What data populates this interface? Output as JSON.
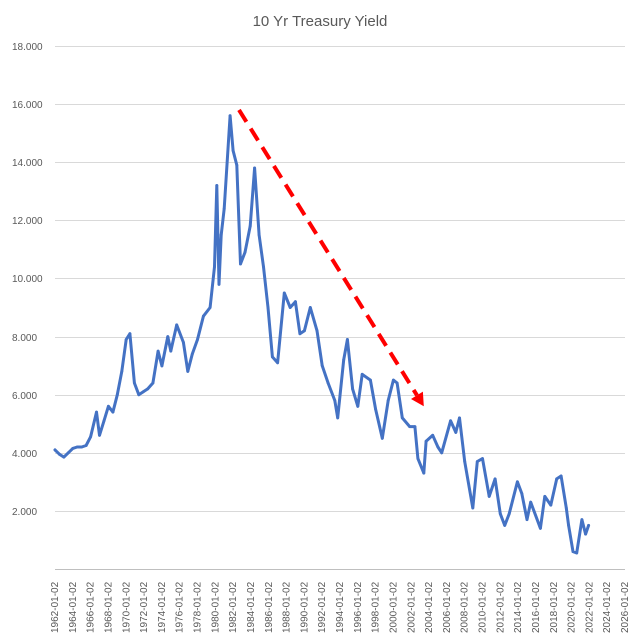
{
  "chart_data": {
    "type": "line",
    "title": "10 Yr Treasury Yield",
    "xlabel": "",
    "ylabel": "",
    "ylim": [
      0,
      18
    ],
    "xlim": [
      "1962-01-02",
      "2026-01-02"
    ],
    "y_ticks": [
      "",
      "2.000",
      "4.000",
      "6.000",
      "8.000",
      "10.000",
      "12.000",
      "14.000",
      "16.000",
      "18.000"
    ],
    "x_ticks": [
      "1962-01-02",
      "1964-01-02",
      "1966-01-02",
      "1968-01-02",
      "1970-01-02",
      "1972-01-02",
      "1974-01-02",
      "1976-01-02",
      "1978-01-02",
      "1980-01-02",
      "1982-01-02",
      "1984-01-02",
      "1986-01-02",
      "1988-01-02",
      "1990-01-02",
      "1992-01-02",
      "1994-01-02",
      "1996-01-02",
      "1998-01-02",
      "2000-01-02",
      "2002-01-02",
      "2004-01-02",
      "2006-01-02",
      "2008-01-02",
      "2010-01-02",
      "2012-01-02",
      "2014-01-02",
      "2016-01-02",
      "2018-01-02",
      "2020-01-02",
      "2022-01-02",
      "2024-01-02",
      "2026-01-02"
    ],
    "grid": true,
    "colors": {
      "series": "#4472c4",
      "trend": "#ff0000",
      "grid": "#d9d9d9",
      "text": "#595959"
    },
    "series": [
      {
        "x": [
          "1962-01",
          "1962-07",
          "1963-01",
          "1963-07",
          "1964-01",
          "1964-07",
          "1965-01",
          "1965-07",
          "1966-01",
          "1966-09",
          "1967-01",
          "1967-07",
          "1968-01",
          "1968-07",
          "1969-01",
          "1969-07",
          "1970-01",
          "1970-06",
          "1970-12",
          "1971-06",
          "1971-12",
          "1972-06",
          "1973-01",
          "1973-08",
          "1974-01",
          "1974-09",
          "1975-01",
          "1975-09",
          "1976-06",
          "1976-12",
          "1977-06",
          "1978-01",
          "1978-09",
          "1979-06",
          "1979-12",
          "1980-03",
          "1980-06",
          "1980-09",
          "1981-01",
          "1981-09",
          "1982-01",
          "1982-06",
          "1982-11",
          "1983-05",
          "1983-12",
          "1984-06",
          "1984-12",
          "1985-06",
          "1985-12",
          "1986-06",
          "1987-01",
          "1987-10",
          "1988-06",
          "1989-01",
          "1989-07",
          "1990-01",
          "1990-09",
          "1991-06",
          "1992-01",
          "1992-09",
          "1993-06",
          "1993-10",
          "1994-06",
          "1994-11",
          "1995-06",
          "1996-01",
          "1996-07",
          "1997-06",
          "1998-01",
          "1998-10",
          "1999-06",
          "2000-01",
          "2000-06",
          "2001-01",
          "2001-11",
          "2002-06",
          "2002-10",
          "2003-06",
          "2003-09",
          "2004-06",
          "2005-01",
          "2005-06",
          "2006-06",
          "2007-01",
          "2007-06",
          "2008-01",
          "2008-12",
          "2009-06",
          "2010-01",
          "2010-10",
          "2011-06",
          "2012-01",
          "2012-07",
          "2013-01",
          "2013-12",
          "2014-06",
          "2015-01",
          "2015-06",
          "2016-07",
          "2017-01",
          "2017-09",
          "2018-05",
          "2018-11",
          "2019-06",
          "2019-09",
          "2020-03",
          "2020-08",
          "2021-03",
          "2021-08",
          "2021-12"
        ],
        "values": [
          4.1,
          3.95,
          3.85,
          4.0,
          4.15,
          4.2,
          4.2,
          4.25,
          4.55,
          5.4,
          4.6,
          5.1,
          5.6,
          5.4,
          6.0,
          6.8,
          7.9,
          8.1,
          6.4,
          6.0,
          6.1,
          6.2,
          6.4,
          7.5,
          6.99,
          8.0,
          7.5,
          8.4,
          7.8,
          6.8,
          7.4,
          7.9,
          8.7,
          9.0,
          10.4,
          13.2,
          9.8,
          11.5,
          12.4,
          15.6,
          14.4,
          13.9,
          10.5,
          10.9,
          11.8,
          13.8,
          11.5,
          10.4,
          9.0,
          7.3,
          7.1,
          9.5,
          9.0,
          9.2,
          8.1,
          8.2,
          9.0,
          8.2,
          7.0,
          6.4,
          5.8,
          5.2,
          7.2,
          7.9,
          6.2,
          5.6,
          6.7,
          6.5,
          5.5,
          4.5,
          5.8,
          6.5,
          6.4,
          5.2,
          4.9,
          4.9,
          3.8,
          3.3,
          4.4,
          4.6,
          4.2,
          4.0,
          5.1,
          4.7,
          5.2,
          3.7,
          2.1,
          3.7,
          3.8,
          2.5,
          3.1,
          1.9,
          1.5,
          1.9,
          3.0,
          2.6,
          1.7,
          2.3,
          1.4,
          2.5,
          2.2,
          3.1,
          3.2,
          2.1,
          1.5,
          0.6,
          0.55,
          1.7,
          1.2,
          1.5
        ]
      }
    ],
    "trend_arrow": {
      "from": [
        "1982-09-01",
        15.8
      ],
      "to": [
        "2003-06-01",
        5.6
      ]
    }
  }
}
